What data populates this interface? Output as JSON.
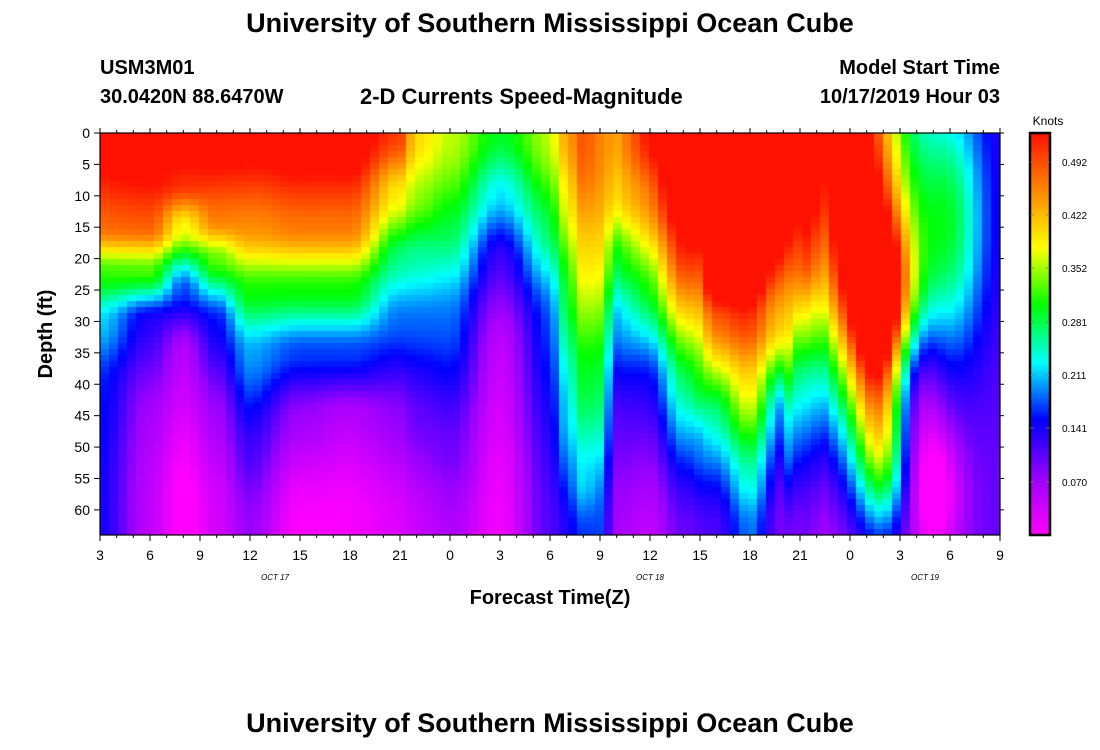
{
  "header": {
    "title": "University of Southern Mississippi Ocean Cube",
    "station_id": "USM3M01",
    "station_coords": "30.0420N 88.6470W",
    "plot_name": "2-D Currents Speed-Magnitude",
    "model_label": "Model Start Time",
    "model_time": "10/17/2019 Hour 03",
    "footer_title": "University of Southern Mississippi Ocean Cube"
  },
  "colorbar": {
    "unit": "Knots",
    "ticks": [
      "0.492",
      "0.422",
      "0.352",
      "0.281",
      "0.211",
      "0.141",
      "0.070"
    ],
    "tick_values": [
      0.492,
      0.422,
      0.352,
      0.281,
      0.211,
      0.141,
      0.07
    ],
    "min": 0.0,
    "max": 0.53,
    "colors": [
      "#ff00ff",
      "#9900ff",
      "#0000ff",
      "#00ffff",
      "#00ff00",
      "#ffff00",
      "#ff8800",
      "#ff1100"
    ]
  },
  "chart_data": {
    "type": "heatmap",
    "title": "2-D Currents Speed-Magnitude",
    "xlabel": "Forecast Time(Z)",
    "ylabel": "Depth (ft)",
    "x_range_hours": [
      0,
      54
    ],
    "y_range_ft": [
      0,
      64
    ],
    "x_tick_labels": [
      "3",
      "6",
      "9",
      "12",
      "15",
      "18",
      "21",
      "0",
      "3",
      "6",
      "9",
      "12",
      "15",
      "18",
      "21",
      "0",
      "3",
      "6",
      "9"
    ],
    "y_tick_labels": [
      "0",
      "5",
      "10",
      "15",
      "20",
      "25",
      "30",
      "35",
      "40",
      "45",
      "50",
      "55",
      "60"
    ],
    "date_labels": [
      {
        "label": "OCT 17",
        "hour": 10.5
      },
      {
        "label": "OCT 18",
        "hour": 33
      },
      {
        "label": "OCT 19",
        "hour": 49.5
      }
    ],
    "profiles": [
      {
        "t": 0,
        "d": [
          0,
          15,
          22,
          30,
          40,
          64
        ],
        "v": [
          0.44,
          0.4,
          0.28,
          0.2,
          0.16,
          0.16
        ]
      },
      {
        "t": 3,
        "d": [
          0,
          15,
          22,
          30,
          45,
          64
        ],
        "v": [
          0.44,
          0.4,
          0.28,
          0.12,
          0.08,
          0.08
        ]
      },
      {
        "t": 5,
        "d": [
          0,
          8,
          15,
          25,
          35,
          64
        ],
        "v": [
          0.44,
          0.4,
          0.3,
          0.14,
          0.05,
          0.03
        ]
      },
      {
        "t": 7,
        "d": [
          0,
          14,
          20,
          30,
          45,
          64
        ],
        "v": [
          0.44,
          0.38,
          0.28,
          0.14,
          0.09,
          0.08
        ]
      },
      {
        "t": 9,
        "d": [
          0,
          15,
          25,
          35,
          50,
          64
        ],
        "v": [
          0.44,
          0.38,
          0.28,
          0.2,
          0.16,
          0.13
        ]
      },
      {
        "t": 12,
        "d": [
          0,
          15,
          25,
          35,
          45,
          64
        ],
        "v": [
          0.46,
          0.4,
          0.28,
          0.17,
          0.1,
          0.06
        ]
      },
      {
        "t": 15,
        "d": [
          0,
          15,
          25,
          35,
          45,
          64
        ],
        "v": [
          0.46,
          0.4,
          0.28,
          0.17,
          0.08,
          0.06
        ]
      },
      {
        "t": 18,
        "d": [
          0,
          10,
          20,
          30,
          45,
          64
        ],
        "v": [
          0.4,
          0.3,
          0.22,
          0.17,
          0.1,
          0.07
        ]
      },
      {
        "t": 19,
        "d": [
          0,
          10,
          20,
          30,
          45,
          64
        ],
        "v": [
          0.3,
          0.26,
          0.21,
          0.17,
          0.12,
          0.08
        ]
      },
      {
        "t": 21,
        "d": [
          0,
          15,
          30,
          50,
          64
        ],
        "v": [
          0.26,
          0.22,
          0.17,
          0.12,
          0.09
        ]
      },
      {
        "t": 24,
        "d": [
          0,
          10,
          20,
          35,
          64
        ],
        "v": [
          0.2,
          0.14,
          0.08,
          0.04,
          0.03
        ]
      },
      {
        "t": 27,
        "d": [
          0,
          15,
          30,
          64
        ],
        "v": [
          0.26,
          0.21,
          0.15,
          0.12
        ]
      },
      {
        "t": 27.8,
        "d": [
          0,
          10,
          25,
          45,
          64
        ],
        "v": [
          0.32,
          0.28,
          0.24,
          0.2,
          0.14
        ]
      },
      {
        "t": 29,
        "d": [
          0,
          20,
          40,
          55,
          64
        ],
        "v": [
          0.36,
          0.32,
          0.27,
          0.22,
          0.17
        ]
      },
      {
        "t": 30,
        "d": [
          0,
          20,
          40,
          64
        ],
        "v": [
          0.3,
          0.29,
          0.25,
          0.17
        ]
      },
      {
        "t": 31,
        "d": [
          0,
          10,
          20,
          30,
          45,
          64
        ],
        "v": [
          0.24,
          0.22,
          0.16,
          0.12,
          0.08,
          0.06
        ]
      },
      {
        "t": 33,
        "d": [
          0,
          10,
          25,
          40,
          64
        ],
        "v": [
          0.25,
          0.2,
          0.14,
          0.07,
          0.04
        ]
      },
      {
        "t": 35,
        "d": [
          0,
          20,
          40,
          64
        ],
        "v": [
          0.28,
          0.25,
          0.17,
          0.1
        ]
      },
      {
        "t": 36,
        "d": [
          0,
          10,
          20,
          40,
          50,
          64
        ],
        "v": [
          0.28,
          0.28,
          0.24,
          0.2,
          0.16,
          0.12
        ]
      },
      {
        "t": 36.8,
        "d": [
          0,
          20,
          30,
          45,
          64
        ],
        "v": [
          0.44,
          0.4,
          0.3,
          0.2,
          0.14
        ]
      },
      {
        "t": 39,
        "d": [
          0,
          20,
          30,
          40,
          55,
          64
        ],
        "v": [
          0.44,
          0.42,
          0.36,
          0.32,
          0.27,
          0.23
        ]
      },
      {
        "t": 41,
        "d": [
          0,
          10,
          30,
          45,
          64
        ],
        "v": [
          0.4,
          0.38,
          0.28,
          0.14,
          0.12
        ]
      },
      {
        "t": 41.5,
        "d": [
          0,
          10,
          30,
          50,
          64
        ],
        "v": [
          0.34,
          0.3,
          0.25,
          0.19,
          0.12
        ]
      },
      {
        "t": 42,
        "d": [
          0,
          20,
          40,
          64
        ],
        "v": [
          0.3,
          0.25,
          0.14,
          0.1
        ]
      },
      {
        "t": 42.7,
        "d": [
          0,
          20,
          30,
          40,
          64
        ],
        "v": [
          0.26,
          0.22,
          0.16,
          0.12,
          0.09
        ]
      },
      {
        "t": 43.2,
        "d": [
          0,
          20,
          40,
          64
        ],
        "v": [
          0.12,
          0.1,
          0.07,
          0.05
        ]
      },
      {
        "t": 54,
        "d": [
          0,
          64
        ],
        "v": [
          0.12,
          0.1
        ]
      }
    ],
    "hotspots": [
      {
        "t": 2,
        "d": 2,
        "a": 0.1,
        "st": 6,
        "sd": 14
      },
      {
        "t": 19.5,
        "d": 2,
        "a": 0.1,
        "st": 10,
        "sd": 14
      },
      {
        "t": 12,
        "d": 60,
        "a": -0.06,
        "st": 8,
        "sd": 12
      },
      {
        "t": 39,
        "d": 60,
        "a": -0.06,
        "st": 2.5,
        "sd": 10
      },
      {
        "t": 34.5,
        "d": 2,
        "a": 0.22,
        "st": 3.5,
        "sd": 25
      },
      {
        "t": 38,
        "d": 0,
        "a": 0.18,
        "st": 3,
        "sd": 25
      },
      {
        "t": 45,
        "d": 5,
        "a": 0.46,
        "st": 2.3,
        "sd": 26
      },
      {
        "t": 47,
        "d": 28,
        "a": 0.38,
        "st": 1.4,
        "sd": 11
      },
      {
        "t": 47,
        "d": 50,
        "a": 0.22,
        "st": 1.2,
        "sd": 10
      },
      {
        "t": 48.5,
        "d": 40,
        "a": -0.14,
        "st": 1.2,
        "sd": 9
      },
      {
        "t": 50,
        "d": 57,
        "a": -0.12,
        "st": 1.2,
        "sd": 8
      },
      {
        "t": 51,
        "d": 15,
        "a": 0.16,
        "st": 1.5,
        "sd": 15
      }
    ]
  }
}
